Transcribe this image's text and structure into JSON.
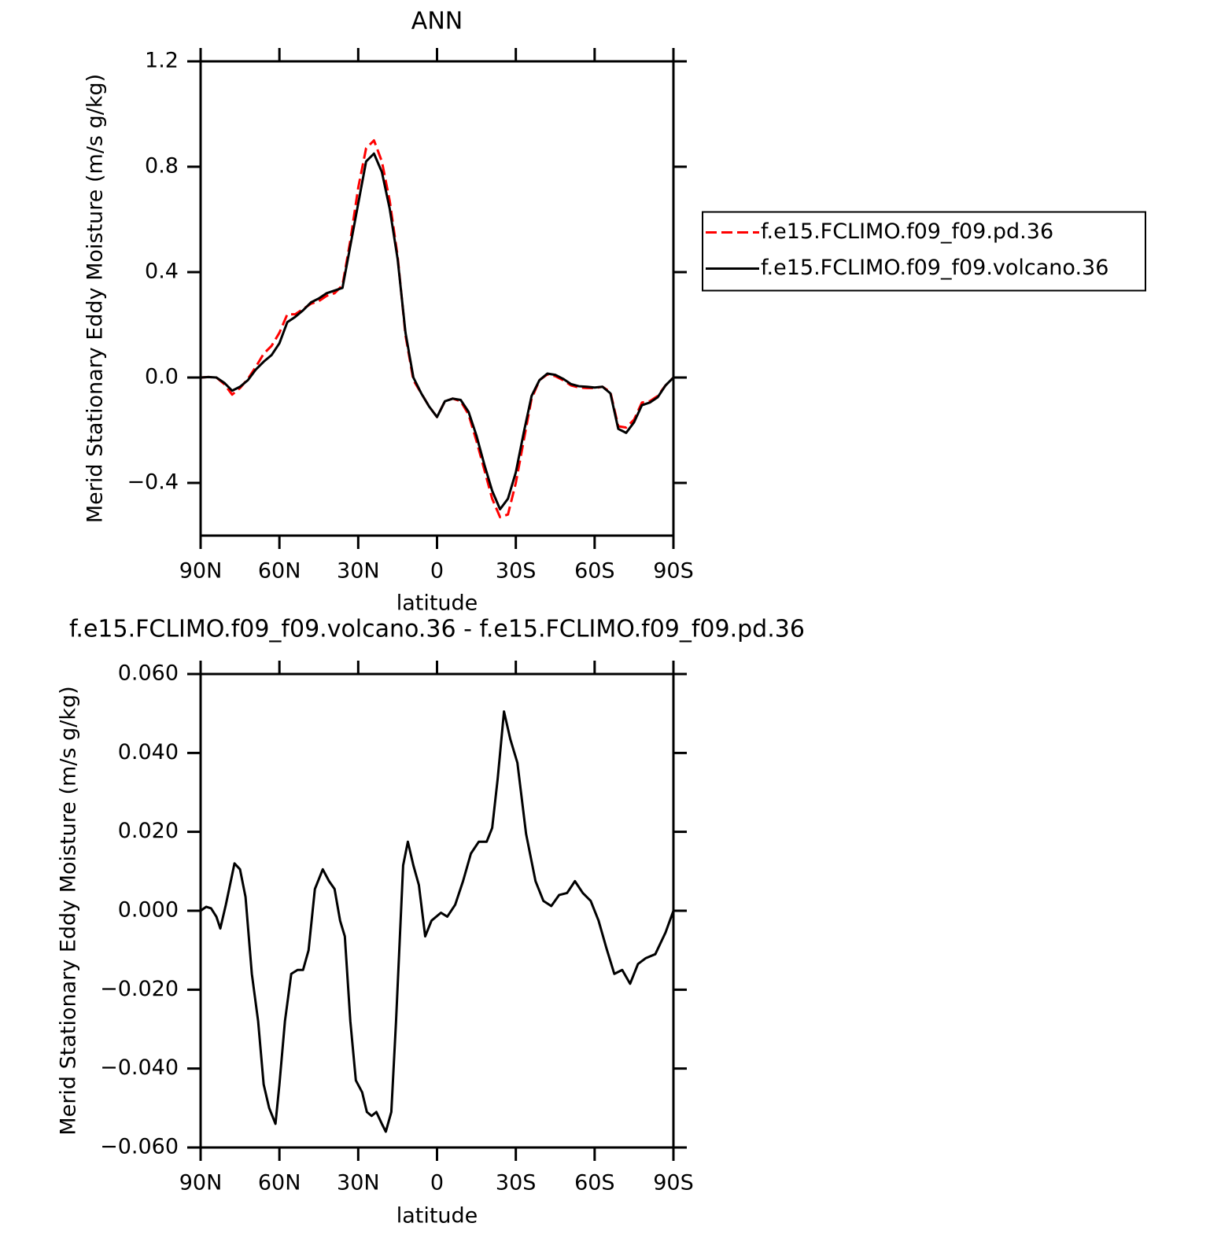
{
  "chart_data": [
    {
      "type": "line",
      "title": "ANN",
      "y_label": "Merid Stationary Eddy Moisture (m/s g/kg)",
      "x_label": "latitude",
      "x": [
        90,
        87,
        84,
        81,
        78,
        75,
        72,
        69,
        66,
        63,
        60,
        57,
        54,
        51,
        48,
        45,
        42,
        39,
        36,
        33,
        30,
        27,
        24,
        21,
        18,
        15,
        12,
        9,
        6,
        3,
        0,
        -3,
        -6,
        -9,
        -12,
        -15,
        -18,
        -21,
        -24,
        -27,
        -30,
        -33,
        -36,
        -39,
        -42,
        -45,
        -48,
        -51,
        -54,
        -57,
        -60,
        -63,
        -66,
        -69,
        -72,
        -75,
        -78,
        -81,
        -84,
        -87,
        -90
      ],
      "xlim": [
        90,
        -90
      ],
      "xticks": [
        {
          "value": 90,
          "label": "90N"
        },
        {
          "value": 60,
          "label": "60N"
        },
        {
          "value": 30,
          "label": "30N"
        },
        0,
        {
          "value": -30,
          "label": "30S"
        },
        {
          "value": -60,
          "label": "60S"
        },
        {
          "value": -90,
          "label": "90S"
        }
      ],
      "ylim": [
        -0.6,
        1.2
      ],
      "yticks": [
        {
          "value": -0.4,
          "label": "−0.4"
        },
        {
          "value": 0,
          "label": "0.0"
        },
        0.4,
        0.8,
        1.2
      ],
      "legend": "right",
      "series": [
        {
          "name": "f.e15.FCLIMO.f09_f09.pd.36",
          "color": "#ff0000",
          "dash": true,
          "values": [
            0,
            0.002,
            0,
            -0.025,
            -0.065,
            -0.04,
            -0.005,
            0.04,
            0.09,
            0.12,
            0.17,
            0.24,
            0.24,
            0.26,
            0.28,
            0.29,
            0.31,
            0.32,
            0.35,
            0.52,
            0.72,
            0.87,
            0.9,
            0.82,
            0.67,
            0.46,
            0.16,
            -0.01,
            -0.06,
            -0.11,
            -0.15,
            -0.09,
            -0.08,
            -0.09,
            -0.14,
            -0.24,
            -0.35,
            -0.46,
            -0.53,
            -0.52,
            -0.4,
            -0.24,
            -0.08,
            -0.01,
            0.012,
            0.005,
            -0.01,
            -0.03,
            -0.038,
            -0.04,
            -0.04,
            -0.035,
            -0.055,
            -0.185,
            -0.19,
            -0.16,
            -0.095,
            -0.09,
            -0.07,
            -0.03,
            0
          ]
        },
        {
          "name": "f.e15.FCLIMO.f09_f09.volcano.36",
          "color": "#000000",
          "dash": false,
          "values": [
            0,
            0.002,
            0,
            -0.02,
            -0.05,
            -0.035,
            -0.01,
            0.03,
            0.06,
            0.085,
            0.13,
            0.21,
            0.23,
            0.255,
            0.285,
            0.3,
            0.32,
            0.33,
            0.34,
            0.5,
            0.66,
            0.82,
            0.85,
            0.78,
            0.64,
            0.45,
            0.17,
            0,
            -0.06,
            -0.11,
            -0.15,
            -0.09,
            -0.08,
            -0.085,
            -0.13,
            -0.22,
            -0.33,
            -0.43,
            -0.5,
            -0.46,
            -0.36,
            -0.21,
            -0.07,
            -0.01,
            0.015,
            0.01,
            -0.005,
            -0.025,
            -0.033,
            -0.035,
            -0.038,
            -0.035,
            -0.06,
            -0.195,
            -0.21,
            -0.17,
            -0.105,
            -0.095,
            -0.075,
            -0.03,
            0
          ]
        }
      ]
    },
    {
      "type": "line",
      "title": "f.e15.FCLIMO.f09_f09.volcano.36 - f.e15.FCLIMO.f09_f09.pd.36",
      "y_label": "Merid Stationary Eddy Moisture (m/s g/kg)",
      "x_label": "latitude",
      "x": [
        90,
        87.9,
        86,
        84,
        82.5,
        80.4,
        77.1,
        75,
        72.9,
        70.5,
        68.1,
        66,
        63.9,
        61.5,
        60,
        57.9,
        55.5,
        53.1,
        51,
        48.9,
        46.5,
        43.5,
        41.1,
        39,
        36.9,
        35.1,
        33,
        30.9,
        28.5,
        26.7,
        24.9,
        23.1,
        21,
        19.5,
        17.4,
        15.6,
        12.9,
        11.1,
        9,
        6.9,
        4.5,
        2.1,
        -1.5,
        -3.9,
        -6.9,
        -9.9,
        -12.9,
        -15.9,
        -18.9,
        -21,
        -23.1,
        -25.5,
        -27.9,
        -30.6,
        -33.9,
        -37.5,
        -40.5,
        -43.5,
        -46.5,
        -49.5,
        -52.5,
        -55.5,
        -58.5,
        -61.5,
        -64.5,
        -67.5,
        -70.5,
        -73.5,
        -76.5,
        -79.5,
        -83.1,
        -87,
        -90
      ],
      "xlim": [
        90,
        -90
      ],
      "xticks": [
        {
          "value": 90,
          "label": "90N"
        },
        {
          "value": 60,
          "label": "60N"
        },
        {
          "value": 30,
          "label": "30N"
        },
        0,
        {
          "value": -30,
          "label": "30S"
        },
        {
          "value": -60,
          "label": "60S"
        },
        {
          "value": -90,
          "label": "90S"
        }
      ],
      "ylim": [
        -0.06,
        0.06
      ],
      "yticks": [
        {
          "value": -0.06,
          "label": "−0.060"
        },
        {
          "value": -0.04,
          "label": "−0.040"
        },
        {
          "value": -0.02,
          "label": "−0.020"
        },
        {
          "value": 0,
          "label": "0.000"
        },
        {
          "value": 0.02,
          "label": "0.020"
        },
        {
          "value": 0.04,
          "label": "0.040"
        },
        {
          "value": 0.06,
          "label": "0.060"
        }
      ],
      "color": "#000000",
      "values": [
        0,
        0.001,
        0.0006,
        -0.0015,
        -0.0045,
        0.0015,
        0.012,
        0.0105,
        0.0035,
        -0.016,
        -0.028,
        -0.044,
        -0.05,
        -0.054,
        -0.044,
        -0.028,
        -0.016,
        -0.015,
        -0.015,
        -0.01,
        0.0055,
        0.0105,
        0.0075,
        0.0055,
        -0.0025,
        -0.0065,
        -0.028,
        -0.043,
        -0.046,
        -0.051,
        -0.052,
        -0.051,
        -0.054,
        -0.056,
        -0.051,
        -0.028,
        0.0115,
        0.0175,
        0.0115,
        0.0065,
        -0.0065,
        -0.0025,
        -0.0005,
        -0.0015,
        0.0015,
        0.0075,
        0.0145,
        0.0175,
        0.0175,
        0.021,
        0.0335,
        0.0505,
        0.0435,
        0.0375,
        0.0195,
        0.0075,
        0.0025,
        0.0012,
        0.004,
        0.0045,
        0.0075,
        0.0045,
        0.0025,
        -0.0025,
        -0.0095,
        -0.016,
        -0.015,
        -0.0185,
        -0.0135,
        -0.012,
        -0.011,
        -0.0055,
        0
      ]
    }
  ]
}
